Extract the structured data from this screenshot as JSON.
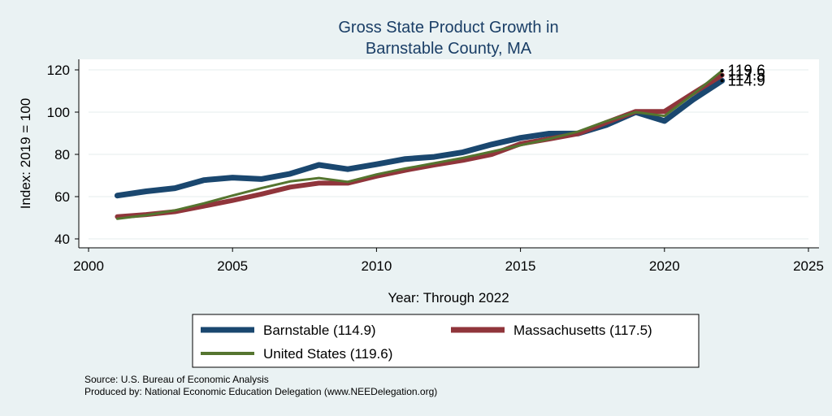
{
  "chart_data": {
    "type": "line",
    "title": [
      "Gross State Product Growth in",
      "Barnstable County, MA"
    ],
    "xlabel": "Year: Through 2022",
    "ylabel": "Index: 2019 = 100",
    "xlim": [
      2000,
      2025
    ],
    "ylim": [
      40,
      120
    ],
    "xticks": [
      2000,
      2005,
      2010,
      2015,
      2020,
      2025
    ],
    "yticks": [
      40,
      60,
      80,
      100,
      120
    ],
    "grid": "horizontal",
    "legend_position": "bottom",
    "x": [
      2001,
      2002,
      2003,
      2004,
      2005,
      2006,
      2007,
      2008,
      2009,
      2010,
      2011,
      2012,
      2013,
      2014,
      2015,
      2016,
      2017,
      2018,
      2019,
      2020,
      2021,
      2022
    ],
    "series": [
      {
        "name": "Barnstable",
        "legend": "Barnstable  (114.9)",
        "end_label": "114.9",
        "color": "#1a476f",
        "values": [
          60.5,
          62.5,
          64.0,
          67.8,
          69.0,
          68.3,
          70.8,
          75.0,
          73.0,
          75.3,
          77.8,
          78.8,
          81.0,
          84.7,
          87.8,
          89.8,
          89.9,
          94.0,
          100.0,
          95.8,
          106.0,
          114.9
        ]
      },
      {
        "name": "Massachusetts",
        "legend": "Massachusetts (117.5)",
        "end_label": "117.5",
        "color": "#90353b",
        "values": [
          50.5,
          51.5,
          52.9,
          55.5,
          58.2,
          61.2,
          64.5,
          66.4,
          66.4,
          69.7,
          72.5,
          75.0,
          77.2,
          80.0,
          85.0,
          87.3,
          89.8,
          95.2,
          100.3,
          100.3,
          109.0,
          117.5
        ]
      },
      {
        "name": "United States",
        "legend": "United States (119.6)",
        "end_label": "119.6",
        "color": "#55752f",
        "values": [
          49.5,
          51.2,
          53.5,
          56.8,
          60.5,
          64.0,
          67.2,
          68.8,
          67.0,
          70.5,
          73.3,
          75.8,
          78.3,
          81.3,
          84.3,
          87.3,
          90.8,
          95.8,
          100.0,
          98.2,
          108.5,
          119.6
        ]
      }
    ]
  },
  "notes": {
    "source": "Source: U.S. Bureau of Economic Analysis",
    "produced_by": "Produced by: National Economic Education Delegation (www.NEEDelegation.org)"
  }
}
